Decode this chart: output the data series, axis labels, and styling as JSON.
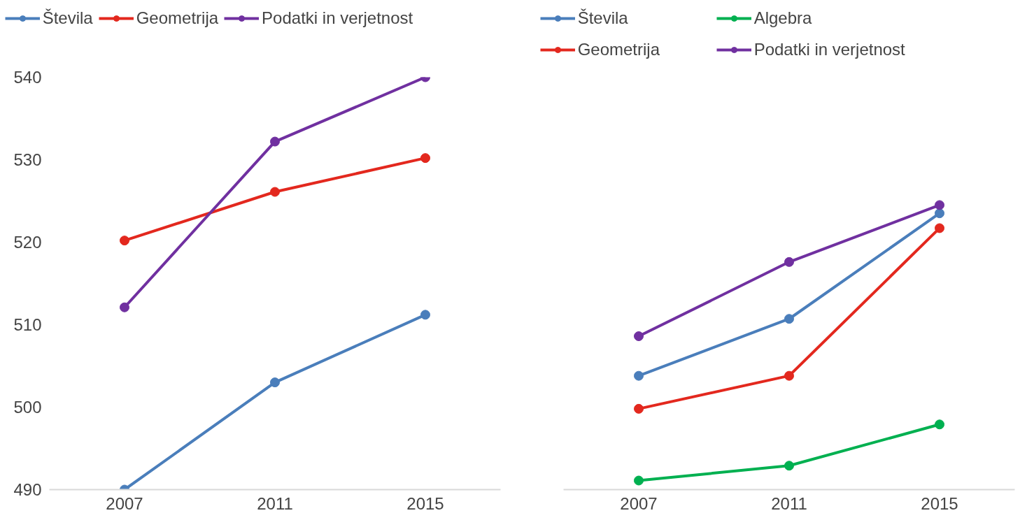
{
  "chart_data": [
    {
      "type": "line",
      "categories": [
        "2007",
        "2011",
        "2015"
      ],
      "ylim": [
        490,
        540
      ],
      "yticks": [
        490,
        500,
        510,
        520,
        530,
        540
      ],
      "grid": false,
      "legend": "top",
      "marker": "circle",
      "line_style": "solid",
      "series": [
        {
          "name": "Števila",
          "color": "#4a7ebb",
          "values": [
            490.0,
            503.0,
            511.2
          ]
        },
        {
          "name": "Geometrija",
          "color": "#e3281e",
          "values": [
            520.2,
            526.1,
            530.2
          ]
        },
        {
          "name": "Podatki in verjetnost",
          "color": "#7030a0",
          "values": [
            512.1,
            532.2,
            540.0
          ]
        }
      ]
    },
    {
      "type": "line",
      "categories": [
        "2007",
        "2011",
        "2015"
      ],
      "ylim": [
        490,
        540
      ],
      "yticks": [
        490,
        500,
        510,
        520,
        530,
        540
      ],
      "tick_labels": "x",
      "grid": false,
      "legend": "top",
      "marker": "circle",
      "line_style": "solid",
      "series": [
        {
          "name": "Števila",
          "color": "#4a7ebb",
          "values": [
            503.8,
            510.7,
            523.5
          ]
        },
        {
          "name": "Algebra",
          "color": "#00b050",
          "values": [
            491.1,
            492.9,
            497.9
          ]
        },
        {
          "name": "Geometrija",
          "color": "#e3281e",
          "values": [
            499.8,
            503.8,
            521.7
          ]
        },
        {
          "name": "Podatki in verjetnost",
          "color": "#7030a0",
          "values": [
            508.6,
            517.6,
            524.5
          ]
        }
      ]
    }
  ]
}
